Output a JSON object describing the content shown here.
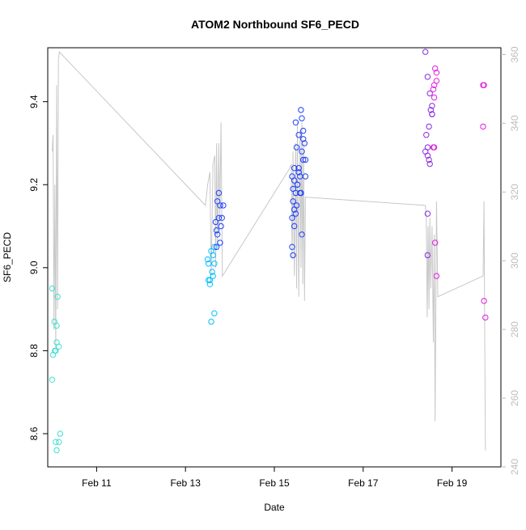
{
  "chart_data": {
    "type": "scatter",
    "title": "ATOM2 Northbound SF6_PECD",
    "xlabel": "Date",
    "ylabel": "SF6_PECD",
    "x_ticks": [
      {
        "label": "Feb 11",
        "day": 11
      },
      {
        "label": "Feb 13",
        "day": 13
      },
      {
        "label": "Feb 15",
        "day": 15
      },
      {
        "label": "Feb 17",
        "day": 17
      },
      {
        "label": "Feb 19",
        "day": 19
      }
    ],
    "xlim": [
      9.9,
      20.1
    ],
    "ylim": [
      8.52,
      9.53
    ],
    "y_ticks": [
      "8.6",
      "8.8",
      "9.0",
      "9.2",
      "9.4"
    ],
    "y2lim": [
      240,
      362
    ],
    "y2_ticks": [
      "240",
      "260",
      "280",
      "300",
      "320",
      "340",
      "360"
    ],
    "grid": false,
    "legend": "none",
    "point_colors": [
      "#40e0d0",
      "#00bfff",
      "#1e40ff",
      "#8a2be2",
      "#e020e0"
    ],
    "line_color": "#c8c8c8",
    "points": [
      [
        10.0,
        8.95
      ],
      [
        10.05,
        8.87
      ],
      [
        10.1,
        8.86
      ],
      [
        10.12,
        8.93
      ],
      [
        10.08,
        8.8
      ],
      [
        10.02,
        8.79
      ],
      [
        10.15,
        8.81
      ],
      [
        10.1,
        8.82
      ],
      [
        10.06,
        8.8
      ],
      [
        10.0,
        8.73
      ],
      [
        10.18,
        8.6
      ],
      [
        10.08,
        8.58
      ],
      [
        10.15,
        8.58
      ],
      [
        10.1,
        8.56
      ],
      [
        13.5,
        9.02
      ],
      [
        13.55,
        8.97
      ],
      [
        13.6,
        8.99
      ],
      [
        13.52,
        9.01
      ],
      [
        13.58,
        9.04
      ],
      [
        13.62,
        9.03
      ],
      [
        13.65,
        9.05
      ],
      [
        13.68,
        9.11
      ],
      [
        13.7,
        9.09
      ],
      [
        13.72,
        9.08
      ],
      [
        13.75,
        9.12
      ],
      [
        13.72,
        9.16
      ],
      [
        13.75,
        9.18
      ],
      [
        13.78,
        9.15
      ],
      [
        13.8,
        9.1
      ],
      [
        13.82,
        9.12
      ],
      [
        13.78,
        9.06
      ],
      [
        13.85,
        9.15
      ],
      [
        13.7,
        9.05
      ],
      [
        13.65,
        9.01
      ],
      [
        13.62,
        8.98
      ],
      [
        13.55,
        8.96
      ],
      [
        13.52,
        8.97
      ],
      [
        13.58,
        8.87
      ],
      [
        13.65,
        8.89
      ],
      [
        15.4,
        9.22
      ],
      [
        15.45,
        9.21
      ],
      [
        15.42,
        9.19
      ],
      [
        15.48,
        9.18
      ],
      [
        15.5,
        9.15
      ],
      [
        15.45,
        9.14
      ],
      [
        15.42,
        9.16
      ],
      [
        15.48,
        9.13
      ],
      [
        15.52,
        9.2
      ],
      [
        15.55,
        9.23
      ],
      [
        15.58,
        9.22
      ],
      [
        15.6,
        9.18
      ],
      [
        15.55,
        9.24
      ],
      [
        15.45,
        9.24
      ],
      [
        15.5,
        9.29
      ],
      [
        15.48,
        9.35
      ],
      [
        15.55,
        9.32
      ],
      [
        15.6,
        9.38
      ],
      [
        15.62,
        9.36
      ],
      [
        15.65,
        9.33
      ],
      [
        15.65,
        9.31
      ],
      [
        15.68,
        9.3
      ],
      [
        15.62,
        9.28
      ],
      [
        15.65,
        9.26
      ],
      [
        15.7,
        9.26
      ],
      [
        15.7,
        9.22
      ],
      [
        15.4,
        9.12
      ],
      [
        15.45,
        9.1
      ],
      [
        15.4,
        9.05
      ],
      [
        15.42,
        9.03
      ],
      [
        15.62,
        9.08
      ],
      [
        15.52,
        9.2
      ],
      [
        15.58,
        9.18
      ],
      [
        18.4,
        9.52
      ],
      [
        18.45,
        9.46
      ],
      [
        18.5,
        9.42
      ],
      [
        18.55,
        9.39
      ],
      [
        18.52,
        9.38
      ],
      [
        18.48,
        9.34
      ],
      [
        18.55,
        9.37
      ],
      [
        18.6,
        9.41
      ],
      [
        18.6,
        9.44
      ],
      [
        18.58,
        9.43
      ],
      [
        18.65,
        9.45
      ],
      [
        18.62,
        9.48
      ],
      [
        18.65,
        9.47
      ],
      [
        18.42,
        9.32
      ],
      [
        18.45,
        9.29
      ],
      [
        18.4,
        9.28
      ],
      [
        18.45,
        9.27
      ],
      [
        18.48,
        9.26
      ],
      [
        18.5,
        9.25
      ],
      [
        18.58,
        9.29
      ],
      [
        18.6,
        9.29
      ],
      [
        18.55,
        9.37
      ],
      [
        18.45,
        9.13
      ],
      [
        18.45,
        9.03
      ],
      [
        18.62,
        9.06
      ],
      [
        18.65,
        8.98
      ],
      [
        19.7,
        9.44
      ],
      [
        19.72,
        9.44
      ],
      [
        19.7,
        9.34
      ],
      [
        19.72,
        8.92
      ],
      [
        19.75,
        8.88
      ]
    ],
    "line": [
      [
        10.0,
        9.28
      ],
      [
        10.02,
        9.32
      ],
      [
        10.04,
        8.85
      ],
      [
        10.06,
        9.2
      ],
      [
        10.08,
        8.8
      ],
      [
        10.1,
        9.44
      ],
      [
        10.12,
        8.9
      ],
      [
        10.14,
        9.5
      ],
      [
        10.16,
        9.52
      ],
      [
        13.45,
        9.15
      ],
      [
        13.5,
        9.2
      ],
      [
        13.55,
        9.23
      ],
      [
        13.58,
        8.98
      ],
      [
        13.62,
        9.25
      ],
      [
        13.66,
        9.27
      ],
      [
        13.68,
        9.0
      ],
      [
        13.7,
        9.3
      ],
      [
        13.72,
        9.05
      ],
      [
        13.75,
        9.3
      ],
      [
        13.77,
        9.1
      ],
      [
        13.8,
        9.35
      ],
      [
        13.83,
        8.98
      ],
      [
        15.35,
        9.24
      ],
      [
        15.38,
        9.25
      ],
      [
        15.4,
        9.02
      ],
      [
        15.42,
        9.28
      ],
      [
        15.45,
        8.98
      ],
      [
        15.48,
        9.3
      ],
      [
        15.5,
        8.95
      ],
      [
        15.52,
        9.35
      ],
      [
        15.55,
        8.93
      ],
      [
        15.58,
        9.33
      ],
      [
        15.6,
        9.0
      ],
      [
        15.62,
        9.35
      ],
      [
        15.64,
        8.96
      ],
      [
        15.66,
        9.3
      ],
      [
        15.68,
        8.92
      ],
      [
        15.7,
        9.17
      ],
      [
        18.4,
        9.15
      ],
      [
        18.42,
        9.12
      ],
      [
        18.44,
        8.88
      ],
      [
        18.46,
        9.1
      ],
      [
        18.48,
        8.9
      ],
      [
        18.5,
        9.12
      ],
      [
        18.52,
        8.95
      ],
      [
        18.55,
        9.1
      ],
      [
        18.58,
        8.82
      ],
      [
        18.6,
        9.08
      ],
      [
        18.62,
        8.63
      ],
      [
        18.65,
        9.16
      ],
      [
        18.68,
        8.93
      ],
      [
        19.7,
        8.98
      ],
      [
        19.72,
        9.16
      ],
      [
        19.75,
        8.56
      ]
    ]
  }
}
